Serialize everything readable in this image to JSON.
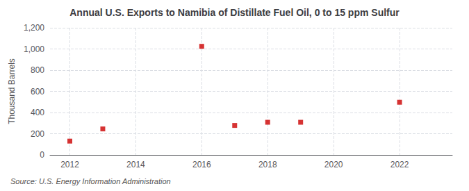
{
  "chart_data": {
    "type": "scatter",
    "title": "Annual U.S. Exports to Namibia of Distillate Fuel Oil, 0 to 15 ppm Sulfur",
    "ylabel": "Thousand Barrels",
    "annotation": "Source: U.S. Energy Information Administration",
    "x": [
      2012,
      2013,
      2016,
      2017,
      2018,
      2019,
      2022
    ],
    "values": [
      130,
      245,
      1025,
      278,
      308,
      308,
      497
    ],
    "color": "#cc0000",
    "marker": "square",
    "xlim": [
      2011.4,
      2023.6
    ],
    "xticks": [
      2012,
      2014,
      2016,
      2018,
      2020,
      2022
    ],
    "ylim": [
      0,
      1200
    ],
    "yticks": [
      0,
      200,
      400,
      600,
      800,
      {
        "value": 1000,
        "label": "1,000"
      },
      {
        "value": 1200,
        "label": "1,200"
      }
    ],
    "grid": true
  }
}
